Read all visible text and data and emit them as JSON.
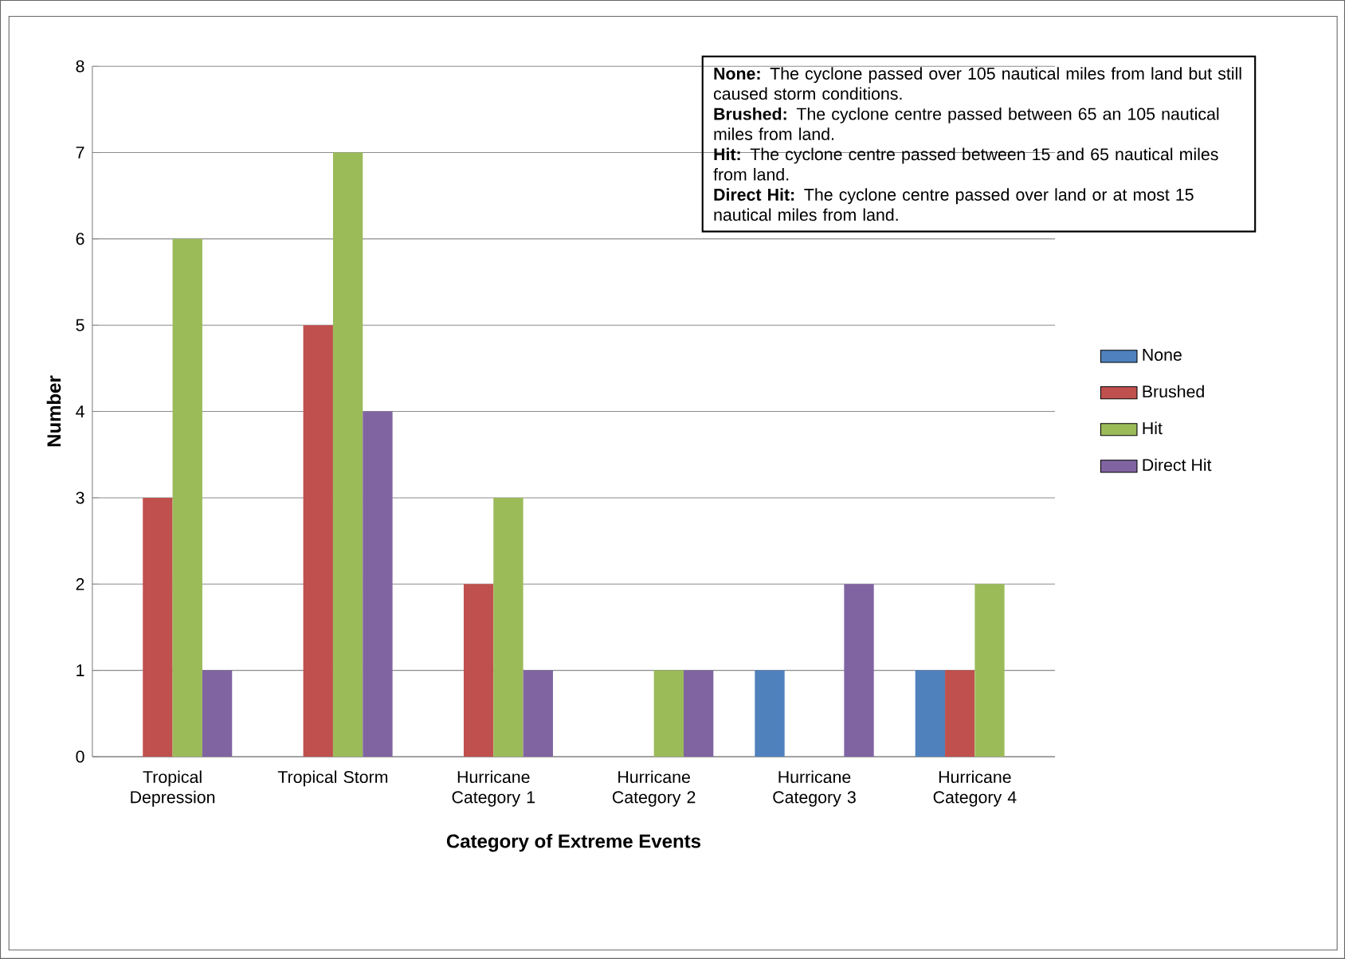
{
  "chart_data": {
    "type": "bar",
    "xlabel": "Category of Extreme Events",
    "ylabel": "Number",
    "categories": [
      "Tropical Depression",
      "Tropical Storm",
      "Hurricane Category 1",
      "Hurricane Category 2",
      "Hurricane Category 3",
      "Hurricane Category 4"
    ],
    "series": [
      {
        "name": "None",
        "color": "#4f81bd",
        "values": [
          0,
          0,
          0,
          0,
          1,
          1
        ]
      },
      {
        "name": "Brushed",
        "color": "#c0504d",
        "values": [
          3,
          5,
          2,
          0,
          0,
          1
        ]
      },
      {
        "name": "Hit",
        "color": "#9bbb59",
        "values": [
          6,
          7,
          3,
          1,
          0,
          2
        ]
      },
      {
        "name": "Direct Hit",
        "color": "#8064a2",
        "values": [
          1,
          4,
          1,
          1,
          2,
          0
        ]
      }
    ],
    "ylim": [
      0,
      8
    ],
    "yticks": [
      0,
      1,
      2,
      3,
      4,
      5,
      6,
      7,
      8
    ],
    "grid": "y",
    "legend": "right",
    "annotations": [
      "**None:** The cyclone passed over 105 nautical miles from land but still caused storm conditions.",
      "**Brushed:** The cyclone centre passed between 65 an 105 nautical miles from land.",
      "**Hit:** The cyclone centre passed between 15 and 65 nautical miles from land.",
      "**Direct Hit:** The cyclone centre passed over land or at most 15 nautical miles from land."
    ]
  }
}
